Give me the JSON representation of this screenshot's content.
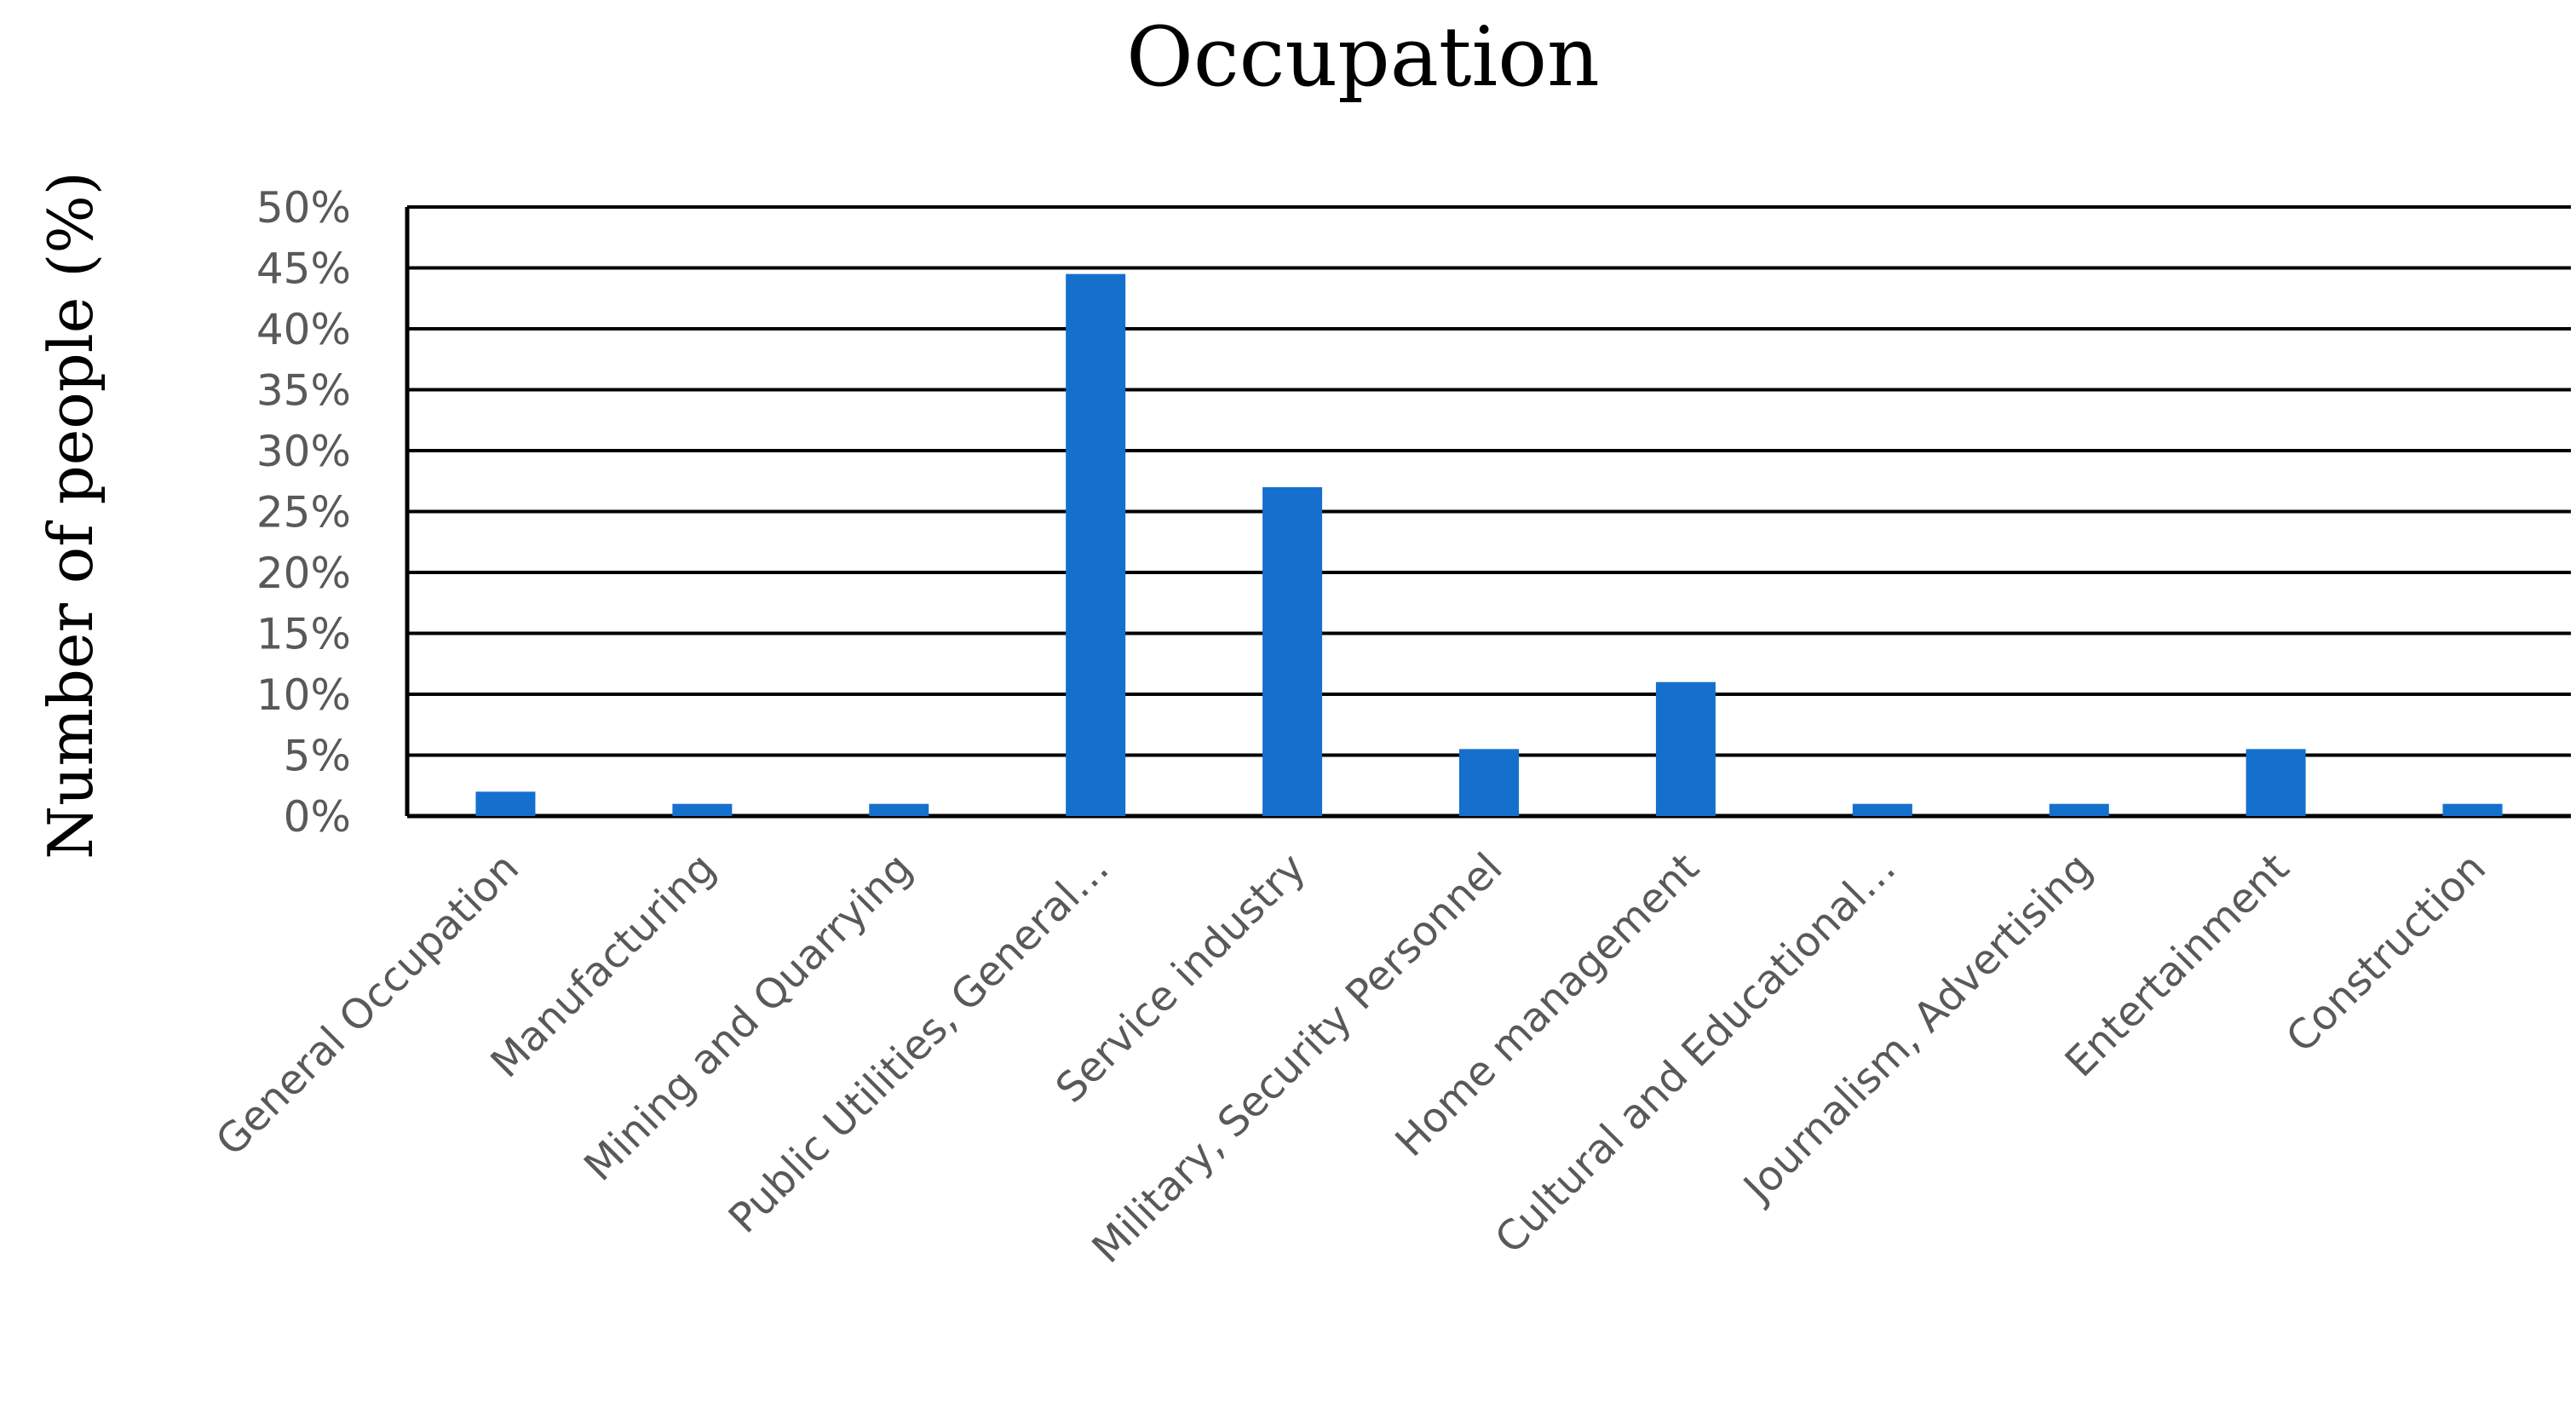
{
  "chart_data": {
    "type": "bar",
    "title": "Occupation",
    "xlabel": "",
    "ylabel": "Number of people (%)",
    "categories": [
      "General Occupation",
      "Manufacturing",
      "Mining and Quarrying",
      "Public Utilities, General…",
      "Service industry",
      "Military, Security Personnel",
      "Home management",
      "Cultural and Educational…",
      "Journalism, Advertising",
      "Entertainment",
      "Construction"
    ],
    "values": [
      2,
      1,
      1,
      44.5,
      27,
      5.5,
      11,
      1,
      1,
      5.5,
      1
    ],
    "ylim": [
      0,
      50
    ],
    "ytick_step": 5,
    "ytick_labels": [
      "0%",
      "5%",
      "10%",
      "15%",
      "20%",
      "25%",
      "30%",
      "35%",
      "40%",
      "45%",
      "50%"
    ],
    "grid": true,
    "legend": "none",
    "bar_color": "#1570CD"
  }
}
